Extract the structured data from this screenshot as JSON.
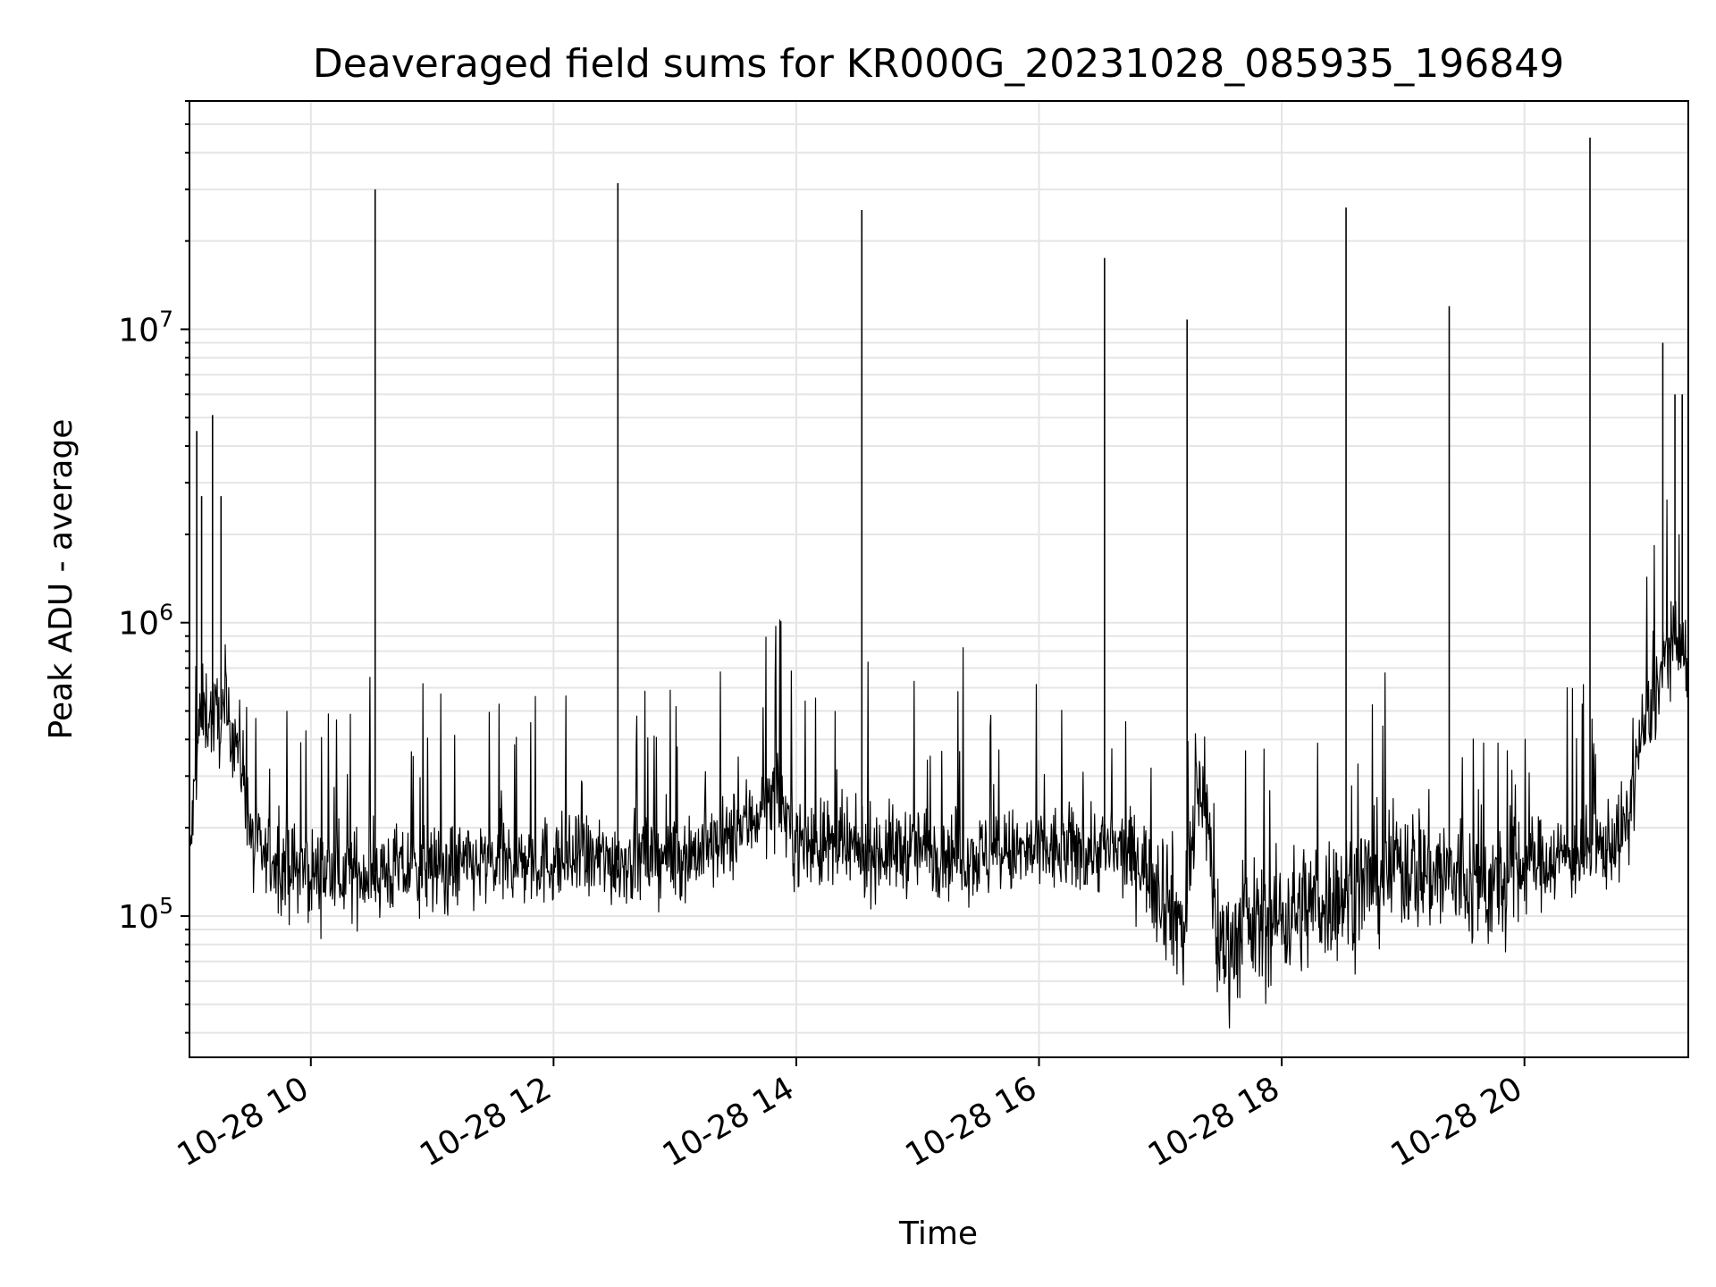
{
  "chart_data": {
    "type": "line",
    "title": "Deaveraged field sums for KR000G_20231028_085935_196849",
    "xlabel": "Time",
    "ylabel": "Peak ADU - average",
    "xlim": [
      9.0,
      21.35
    ],
    "ylim": [
      33000,
      60000000
    ],
    "yscale": "log",
    "grid": true,
    "line_color": "#000000",
    "grid_color": "#e5e5e5",
    "x_ticks": [
      {
        "value": 10,
        "label": "10-28 10"
      },
      {
        "value": 12,
        "label": "10-28 12"
      },
      {
        "value": 14,
        "label": "10-28 14"
      },
      {
        "value": 16,
        "label": "10-28 16"
      },
      {
        "value": 18,
        "label": "10-28 18"
      },
      {
        "value": 20,
        "label": "10-28 20"
      }
    ],
    "y_ticks": [
      {
        "value": 100000,
        "base": "10",
        "exp": "5"
      },
      {
        "value": 1000000,
        "base": "10",
        "exp": "6"
      },
      {
        "value": 10000000,
        "base": "10",
        "exp": "7"
      }
    ],
    "series": [
      {
        "x": [
          9.0,
          9.08,
          9.12,
          9.18,
          9.25,
          9.32,
          9.38,
          9.45,
          9.52,
          9.6,
          9.75,
          10.0,
          10.5,
          11.0,
          11.5,
          12.0,
          12.5,
          13.0,
          13.4,
          13.7,
          13.85,
          14.0,
          14.3,
          14.5,
          15.0,
          15.5,
          16.0,
          16.5,
          16.8,
          17.0,
          17.2,
          17.3,
          17.35,
          17.4,
          17.45,
          17.55,
          17.7,
          18.0,
          18.5,
          19.0,
          19.3,
          19.5,
          19.8,
          20.0,
          20.3,
          20.6,
          20.85,
          20.95,
          21.05,
          21.15,
          21.25,
          21.35
        ],
        "y": [
          150000,
          450000,
          500000,
          480000,
          470000,
          450000,
          420000,
          300000,
          170000,
          160000,
          150000,
          140000,
          140000,
          145000,
          150000,
          155000,
          155000,
          160000,
          175000,
          230000,
          260000,
          180000,
          170000,
          165000,
          170000,
          160000,
          165000,
          170000,
          160000,
          130000,
          90000,
          250000,
          300000,
          200000,
          85000,
          80000,
          90000,
          100000,
          120000,
          150000,
          140000,
          130000,
          125000,
          150000,
          160000,
          165000,
          200000,
          400000,
          500000,
          750000,
          850000,
          700000
        ]
      }
    ],
    "spikes": [
      {
        "x": 9.06,
        "y": 4500000
      },
      {
        "x": 9.1,
        "y": 2700000
      },
      {
        "x": 9.19,
        "y": 5100000
      },
      {
        "x": 9.26,
        "y": 2700000
      },
      {
        "x": 10.53,
        "y": 30000000
      },
      {
        "x": 12.53,
        "y": 31500000
      },
      {
        "x": 14.54,
        "y": 25500000
      },
      {
        "x": 16.54,
        "y": 17500000
      },
      {
        "x": 17.22,
        "y": 10800000
      },
      {
        "x": 18.53,
        "y": 26000000
      },
      {
        "x": 19.38,
        "y": 12000000
      },
      {
        "x": 20.54,
        "y": 45000000
      },
      {
        "x": 21.14,
        "y": 9000000
      },
      {
        "x": 21.24,
        "y": 6000000
      },
      {
        "x": 21.3,
        "y": 6000000
      }
    ]
  }
}
